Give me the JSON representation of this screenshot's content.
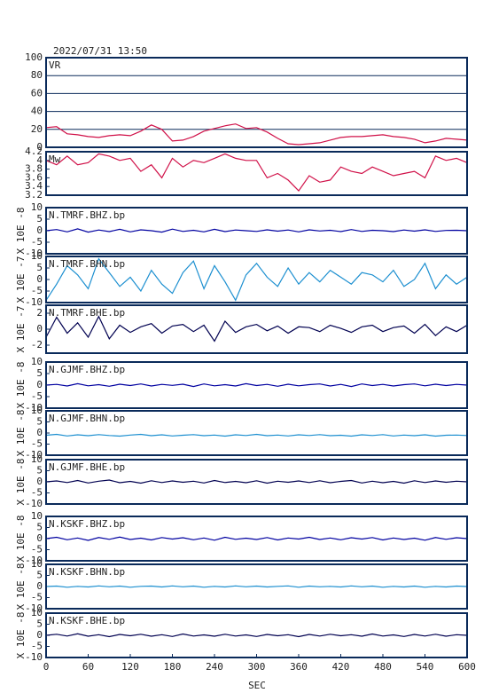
{
  "chart_data": {
    "type": "line",
    "title": "2022/07/31  13:50",
    "xlabel": "SEC",
    "xlim": [
      0,
      600
    ],
    "xticks": [
      0,
      60,
      120,
      180,
      240,
      300,
      360,
      420,
      480,
      540,
      600
    ],
    "x": [
      0,
      15,
      30,
      45,
      60,
      75,
      90,
      105,
      120,
      135,
      150,
      165,
      180,
      195,
      210,
      225,
      240,
      255,
      270,
      285,
      300,
      315,
      330,
      345,
      360,
      375,
      390,
      405,
      420,
      435,
      450,
      465,
      480,
      495,
      510,
      525,
      540,
      555,
      570,
      585,
      600
    ],
    "panels": [
      {
        "name": "VR",
        "color": "#d01048",
        "grid": true,
        "ylim": [
          0,
          100
        ],
        "yticks": [
          0,
          20,
          40,
          60,
          80,
          100
        ],
        "values": [
          22,
          23,
          15,
          14,
          12,
          11,
          13,
          14,
          13,
          18,
          25,
          20,
          7,
          8,
          12,
          18,
          21,
          24,
          26,
          21,
          22,
          17,
          10,
          4,
          3,
          4,
          5,
          8,
          11,
          12,
          12,
          13,
          14,
          12,
          11,
          9,
          5,
          7,
          10,
          9,
          8
        ]
      },
      {
        "name": "Mw",
        "color": "#d01048",
        "grid": false,
        "ylim": [
          3.2,
          4.2
        ],
        "yticks": [
          3.2,
          3.4,
          3.6,
          3.8,
          4,
          4.2
        ],
        "values": [
          4.0,
          3.9,
          4.1,
          3.9,
          3.95,
          4.15,
          4.1,
          4.0,
          4.05,
          3.75,
          3.9,
          3.6,
          4.05,
          3.85,
          4.0,
          3.95,
          4.05,
          4.15,
          4.05,
          4.0,
          4.0,
          3.6,
          3.7,
          3.55,
          3.3,
          3.65,
          3.5,
          3.55,
          3.85,
          3.75,
          3.7,
          3.85,
          3.75,
          3.65,
          3.7,
          3.75,
          3.6,
          4.1,
          4.0,
          4.05,
          3.95
        ]
      },
      {
        "name": "N.TMRF.BHZ.bp",
        "ylabel": "X 10E -8",
        "color": "#0000a0",
        "grid": false,
        "ylim": [
          -10,
          10
        ],
        "yticks": [
          -10,
          -5,
          0,
          5,
          10
        ],
        "values": [
          0,
          0.5,
          -0.5,
          0.8,
          -0.6,
          0.3,
          -0.4,
          0.6,
          -0.5,
          0.4,
          0,
          -0.6,
          0.7,
          -0.3,
          0.2,
          -0.5,
          0.6,
          -0.4,
          0.3,
          0,
          -0.3,
          0.4,
          -0.2,
          0.3,
          -0.5,
          0.4,
          -0.1,
          0.2,
          -0.4,
          0.5,
          -0.3,
          0.2,
          0,
          -0.4,
          0.3,
          -0.2,
          0.4,
          -0.3,
          0.1,
          0.2,
          0
        ]
      },
      {
        "name": "N.TMRF.BHN.bp",
        "ylabel": "X 10E -7",
        "color": "#1c8fd0",
        "grid": false,
        "ylim": [
          -10,
          10
        ],
        "yticks": [
          -10,
          -5,
          0,
          5,
          10
        ],
        "values": [
          -9,
          -2,
          6,
          2,
          -4,
          9,
          3,
          -3,
          1,
          -5,
          4,
          -2,
          -6,
          3,
          8,
          -4,
          6,
          -1,
          -9,
          2,
          7,
          1,
          -3,
          5,
          -2,
          3,
          -1,
          4,
          1,
          -2,
          3,
          2,
          -1,
          4,
          -3,
          0,
          7,
          -4,
          2,
          -2,
          1
        ]
      },
      {
        "name": "N.TMRF.BHE.bp",
        "ylabel": "X 10E -7",
        "color": "#000050",
        "grid": false,
        "ylim": [
          -3,
          3
        ],
        "yticks": [
          -2,
          0,
          2
        ],
        "values": [
          -1,
          1.5,
          -0.5,
          0.8,
          -1,
          1.6,
          -1.2,
          0.5,
          -0.4,
          0.3,
          0.7,
          -0.5,
          0.4,
          0.6,
          -0.3,
          0.5,
          -1.5,
          1,
          -0.4,
          0.3,
          0.6,
          -0.2,
          0.4,
          -0.5,
          0.3,
          0.2,
          -0.3,
          0.5,
          0.1,
          -0.4,
          0.3,
          0.5,
          -0.3,
          0.2,
          0.4,
          -0.5,
          0.6,
          -0.8,
          0.3,
          -0.3,
          0.5
        ]
      },
      {
        "name": "N.GJMF.BHZ.bp",
        "ylabel": "X 10E -8",
        "color": "#0000a0",
        "grid": false,
        "ylim": [
          -10,
          10
        ],
        "yticks": [
          -10,
          -5,
          0,
          5,
          10
        ],
        "values": [
          0,
          0.3,
          -0.4,
          0.6,
          -0.3,
          0.2,
          -0.5,
          0.4,
          -0.2,
          0.5,
          -0.4,
          0.3,
          -0.1,
          0.4,
          -0.6,
          0.5,
          -0.3,
          0.2,
          -0.4,
          0.6,
          -0.2,
          0.3,
          -0.5,
          0.4,
          -0.3,
          0.2,
          0.5,
          -0.4,
          0.3,
          -0.6,
          0.5,
          -0.2,
          0.3,
          -0.4,
          0.2,
          0.5,
          -0.3,
          0.4,
          -0.2,
          0.3,
          0
        ]
      },
      {
        "name": "N.GJMF.BHN.bp",
        "ylabel": "X 10E -8",
        "color": "#1c8fd0",
        "grid": false,
        "ylim": [
          -10,
          10
        ],
        "yticks": [
          -10,
          -5,
          0,
          5,
          10
        ],
        "values": [
          -1,
          -0.6,
          -1.3,
          -0.8,
          -1.2,
          -0.7,
          -1.1,
          -1.4,
          -0.9,
          -0.6,
          -1.2,
          -0.8,
          -1.3,
          -1,
          -0.7,
          -1.2,
          -0.9,
          -1.4,
          -0.8,
          -1.1,
          -0.6,
          -1.2,
          -0.9,
          -1.3,
          -0.8,
          -1.1,
          -0.7,
          -1.2,
          -1,
          -1.4,
          -0.8,
          -1.1,
          -0.7,
          -1.3,
          -0.9,
          -1.2,
          -0.8,
          -1.4,
          -1,
          -0.9,
          -1.1
        ]
      },
      {
        "name": "N.GJMF.BHE.bp",
        "ylabel": "X 10E -8",
        "color": "#000050",
        "grid": false,
        "ylim": [
          -10,
          10
        ],
        "yticks": [
          -10,
          -5,
          0,
          5,
          10
        ],
        "values": [
          0,
          0.4,
          -0.3,
          0.6,
          -0.5,
          0.3,
          0.8,
          -0.4,
          0.2,
          -0.6,
          0.5,
          -0.3,
          0.4,
          -0.2,
          0.3,
          -0.5,
          0.6,
          -0.3,
          0.2,
          -0.4,
          0.5,
          -0.6,
          0.3,
          -0.2,
          0.4,
          -0.3,
          0.5,
          -0.4,
          0.2,
          0.6,
          -0.5,
          0.3,
          -0.4,
          0.2,
          -0.6,
          0.5,
          -0.3,
          0.4,
          -0.2,
          0.3,
          0
        ]
      },
      {
        "name": "N.KSKF.BHZ.bp",
        "ylabel": "X 10E -8",
        "color": "#0000a0",
        "grid": false,
        "ylim": [
          -10,
          10
        ],
        "yticks": [
          -10,
          -5,
          0,
          5,
          10
        ],
        "values": [
          0,
          0.6,
          -0.5,
          0.3,
          -0.8,
          0.5,
          -0.3,
          0.7,
          -0.4,
          0.2,
          -0.6,
          0.5,
          -0.2,
          0.4,
          -0.5,
          0.3,
          -0.7,
          0.6,
          -0.3,
          0.2,
          -0.4,
          0.5,
          -0.6,
          0.3,
          -0.2,
          0.6,
          -0.4,
          0.3,
          -0.5,
          0.4,
          -0.2,
          0.5,
          -0.6,
          0.3,
          -0.4,
          0.2,
          -0.7,
          0.5,
          -0.3,
          0.4,
          0
        ]
      },
      {
        "name": "N.KSKF.BHN.bp",
        "ylabel": "X 10E -8",
        "color": "#1c8fd0",
        "grid": false,
        "ylim": [
          -10,
          10
        ],
        "yticks": [
          -10,
          -5,
          0,
          5,
          10
        ],
        "values": [
          0,
          0.2,
          -0.3,
          0.1,
          -0.2,
          0.3,
          -0.1,
          0.2,
          -0.3,
          0.1,
          0.2,
          -0.2,
          0.3,
          -0.1,
          0.2,
          -0.3,
          0.1,
          -0.2,
          0.3,
          -0.1,
          0.2,
          -0.2,
          0.1,
          0.3,
          -0.3,
          0.2,
          -0.1,
          0.1,
          -0.2,
          0.3,
          -0.1,
          0.2,
          -0.3,
          0.1,
          -0.2,
          0.2,
          -0.3,
          0.1,
          -0.2,
          0.2,
          0
        ]
      },
      {
        "name": "N.KSKF.BHE.bp",
        "ylabel": "X 10E -8",
        "color": "#000050",
        "grid": false,
        "ylim": [
          -10,
          10
        ],
        "yticks": [
          -10,
          -5,
          0,
          5,
          10
        ],
        "values": [
          0,
          0.5,
          -0.3,
          0.7,
          -0.4,
          0.3,
          -0.6,
          0.4,
          -0.2,
          0.5,
          -0.4,
          0.3,
          -0.5,
          0.6,
          -0.3,
          0.2,
          -0.4,
          0.5,
          -0.3,
          0.2,
          -0.5,
          0.4,
          -0.2,
          0.3,
          -0.6,
          0.4,
          -0.3,
          0.5,
          -0.2,
          0.3,
          -0.4,
          0.6,
          -0.3,
          0.2,
          -0.5,
          0.4,
          -0.3,
          0.5,
          -0.4,
          0.3,
          0
        ]
      }
    ]
  }
}
